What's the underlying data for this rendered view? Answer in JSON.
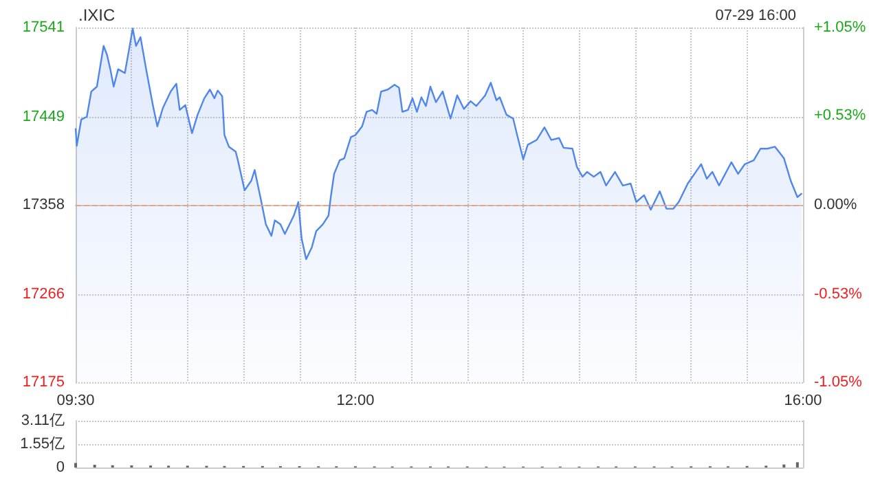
{
  "chart_data": [
    {
      "type": "area",
      "title": ".IXIC",
      "subtitle": "07-29 16:00",
      "color": "#4f86ec",
      "x": [
        9.5,
        9.51,
        9.55,
        9.6,
        9.64,
        9.69,
        9.75,
        9.78,
        9.81,
        9.84,
        9.88,
        9.94,
        9.98,
        10.01,
        10.04,
        10.08,
        10.13,
        10.19,
        10.23,
        10.28,
        10.35,
        10.4,
        10.43,
        10.48,
        10.54,
        10.59,
        10.65,
        10.7,
        10.74,
        10.77,
        10.81,
        10.83,
        10.87,
        10.93,
        10.95,
        11.01,
        11.07,
        11.1,
        11.16,
        11.2,
        11.25,
        11.28,
        11.33,
        11.37,
        11.45,
        11.49,
        11.52,
        11.56,
        11.61,
        11.65,
        11.71,
        11.76,
        11.78,
        11.81,
        11.86,
        11.9,
        11.96,
        12.0,
        12.06,
        12.1,
        12.15,
        12.19,
        12.23,
        12.29,
        12.35,
        12.39,
        12.42,
        12.47,
        12.51,
        12.55,
        12.59,
        12.63,
        12.67,
        12.72,
        12.78,
        12.85,
        12.91,
        12.97,
        13.03,
        13.08,
        13.16,
        13.21,
        13.26,
        13.29,
        13.35,
        13.41,
        13.45,
        13.5,
        13.54,
        13.62,
        13.69,
        13.75,
        13.82,
        13.86,
        13.94,
        13.98,
        14.03,
        14.07,
        14.13,
        14.19,
        14.24,
        14.32,
        14.39,
        14.46,
        14.51,
        14.58,
        14.64,
        14.72,
        14.78,
        14.84,
        14.89,
        14.97,
        15.03,
        15.09,
        15.14,
        15.19,
        15.25,
        15.36,
        15.42,
        15.48,
        15.56,
        15.62,
        15.68,
        15.75,
        15.83,
        15.89,
        15.95,
        15.99
      ],
      "values": [
        17437,
        17419,
        17446,
        17449,
        17475,
        17480,
        17522,
        17513,
        17498,
        17480,
        17498,
        17494,
        17520,
        17540,
        17522,
        17531,
        17498,
        17461,
        17439,
        17458,
        17475,
        17483,
        17456,
        17461,
        17432,
        17451,
        17468,
        17477,
        17468,
        17476,
        17470,
        17430,
        17418,
        17413,
        17404,
        17373,
        17383,
        17394,
        17361,
        17338,
        17326,
        17342,
        17338,
        17328,
        17347,
        17361,
        17323,
        17302,
        17314,
        17331,
        17338,
        17347,
        17366,
        17390,
        17404,
        17406,
        17428,
        17430,
        17439,
        17454,
        17456,
        17452,
        17475,
        17477,
        17482,
        17479,
        17454,
        17456,
        17468,
        17454,
        17469,
        17460,
        17480,
        17464,
        17475,
        17447,
        17471,
        17457,
        17465,
        17460,
        17471,
        17484,
        17466,
        17469,
        17451,
        17447,
        17428,
        17405,
        17420,
        17425,
        17438,
        17425,
        17427,
        17417,
        17416,
        17397,
        17387,
        17392,
        17387,
        17392,
        17378,
        17392,
        17378,
        17380,
        17361,
        17368,
        17353,
        17372,
        17354,
        17354,
        17361,
        17380,
        17390,
        17400,
        17385,
        17392,
        17378,
        17402,
        17390,
        17400,
        17404,
        17416,
        17416,
        17418,
        17406,
        17383,
        17366,
        17370
      ],
      "xlim": [
        9.5,
        16
      ],
      "xticks": [
        {
          "value": 9.5,
          "label": "09:30"
        },
        {
          "value": 10,
          "label": null
        },
        {
          "value": 10.5,
          "label": null
        },
        {
          "value": 11,
          "label": null
        },
        {
          "value": 11.5,
          "label": null
        },
        {
          "value": 12,
          "label": "12:00"
        },
        {
          "value": 12.5,
          "label": null
        },
        {
          "value": 13,
          "label": null
        },
        {
          "value": 13.5,
          "label": null
        },
        {
          "value": 14,
          "label": null
        },
        {
          "value": 14.5,
          "label": null
        },
        {
          "value": 15,
          "label": null
        },
        {
          "value": 15.5,
          "label": null
        },
        {
          "value": 16,
          "label": "16:00"
        }
      ],
      "ylim": [
        17175,
        17541
      ],
      "yticks": [
        17175,
        17266,
        17358,
        17449,
        17541
      ],
      "y2lim": [
        -1.05,
        1.05
      ],
      "y2ticks": [
        {
          "value": -1.05,
          "label": "-1.05%"
        },
        {
          "value": -0.53,
          "label": "-0.53%"
        },
        {
          "value": 0,
          "label": "0.00%"
        },
        {
          "value": 0.53,
          "label": "+0.53%"
        },
        {
          "value": 1.05,
          "label": "+1.05%"
        }
      ],
      "ref_lines": [
        {
          "axis": "y",
          "value": 17358,
          "color": "#e8a383",
          "line_style": "dashed"
        }
      ],
      "grid": true
    },
    {
      "type": "bar",
      "color": "#666666",
      "x": [
        9.5,
        9.67,
        9.83,
        10.0,
        10.17,
        10.33,
        10.5,
        10.67,
        10.83,
        11.0,
        11.17,
        11.33,
        11.5,
        11.67,
        11.83,
        12.0,
        12.17,
        12.33,
        12.5,
        12.67,
        12.83,
        13.0,
        13.17,
        13.33,
        13.5,
        13.67,
        13.83,
        14.0,
        14.17,
        14.33,
        14.5,
        14.67,
        14.83,
        15.0,
        15.17,
        15.33,
        15.5,
        15.67,
        15.83,
        15.95
      ],
      "values": [
        0.3,
        0.18,
        0.15,
        0.14,
        0.13,
        0.12,
        0.12,
        0.11,
        0.1,
        0.1,
        0.1,
        0.09,
        0.09,
        0.08,
        0.08,
        0.08,
        0.07,
        0.07,
        0.07,
        0.07,
        0.07,
        0.07,
        0.06,
        0.06,
        0.06,
        0.06,
        0.06,
        0.06,
        0.07,
        0.07,
        0.07,
        0.07,
        0.07,
        0.08,
        0.08,
        0.08,
        0.1,
        0.12,
        0.2,
        0.35
      ],
      "xlim": [
        9.5,
        16
      ],
      "ylim": [
        0,
        3.11
      ],
      "yticks": [
        0,
        {
          "value": 1.55,
          "label": "1.55亿"
        },
        {
          "value": 3.11,
          "label": "3.11亿"
        }
      ],
      "tick_labels": "y",
      "grid": "y"
    }
  ]
}
